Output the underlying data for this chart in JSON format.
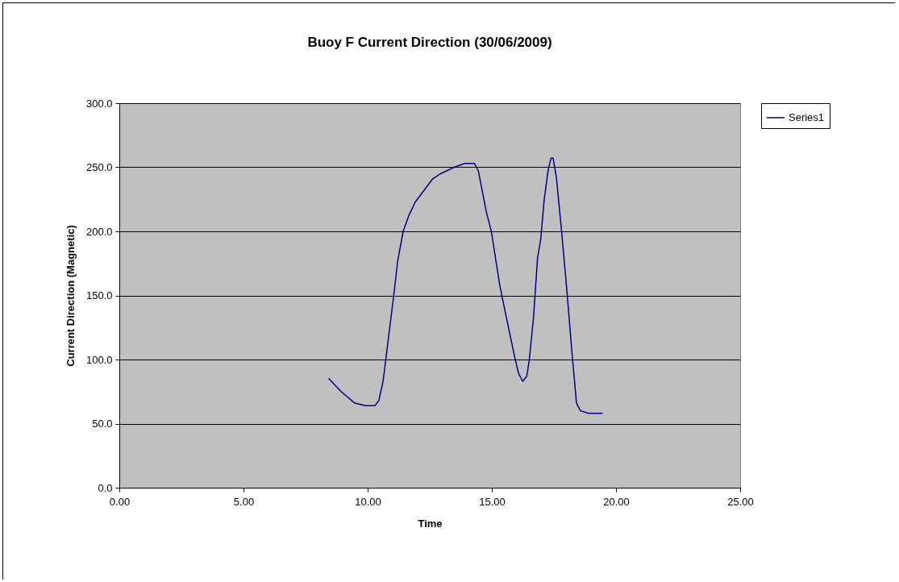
{
  "chart_data": {
    "type": "line",
    "title": "Buoy F Current Direction (30/06/2009)",
    "xlabel": "Time",
    "ylabel": "Current Direction (Magnetic)",
    "x": [
      8.44,
      8.93,
      9.48,
      9.91,
      10.29,
      10.45,
      10.62,
      10.73,
      11.05,
      11.21,
      11.43,
      11.65,
      11.92,
      12.62,
      12.94,
      13.48,
      13.92,
      14.3,
      14.46,
      14.78,
      14.98,
      15.32,
      15.54,
      15.92,
      16.08,
      16.24,
      16.41,
      16.51,
      16.68,
      16.84,
      16.97,
      17.11,
      17.27,
      17.38,
      17.47,
      17.6,
      17.81,
      18.03,
      18.25,
      18.41,
      18.57,
      18.9,
      19.44
    ],
    "series": [
      {
        "name": "Series1",
        "color": "#000080",
        "values": [
          85,
          75,
          66,
          64,
          64,
          68,
          83,
          100,
          150,
          177,
          200,
          212,
          223,
          241,
          245,
          250,
          253,
          253,
          247,
          215,
          200,
          158,
          137,
          102,
          89,
          83,
          87,
          100,
          133,
          179,
          194,
          225,
          248,
          257,
          257,
          242,
          200,
          152,
          100,
          66,
          60,
          58,
          58
        ]
      }
    ],
    "xlim": [
      0,
      25
    ],
    "xticks": [
      {
        "value": 0,
        "label": "0.00"
      },
      {
        "value": 5,
        "label": "5.00"
      },
      {
        "value": 10,
        "label": "10.00"
      },
      {
        "value": 15,
        "label": "15.00"
      },
      {
        "value": 20,
        "label": "20.00"
      },
      {
        "value": 25,
        "label": "25.00"
      }
    ],
    "ylim": [
      0,
      300
    ],
    "yticks": [
      {
        "value": 0,
        "label": "0.0"
      },
      {
        "value": 50,
        "label": "50.0"
      },
      {
        "value": 100,
        "label": "100.0"
      },
      {
        "value": 150,
        "label": "150.0"
      },
      {
        "value": 200,
        "label": "200.0"
      },
      {
        "value": 250,
        "label": "250.0"
      },
      {
        "value": 300,
        "label": "300.0"
      }
    ],
    "grid": "y",
    "legend": "right",
    "marker": "none",
    "line_style": "solid"
  }
}
